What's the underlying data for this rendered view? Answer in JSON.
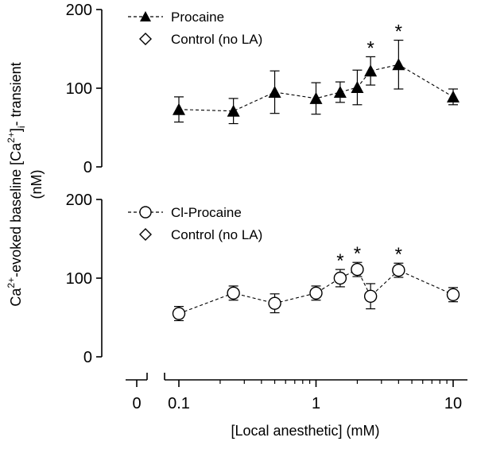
{
  "chart_data": [
    {
      "type": "line",
      "panel": "top",
      "ylabel": "Ca²⁺-evoked baseline [Ca²⁺]i-transient (nM)",
      "xscale": "log",
      "ylim": [
        0,
        200
      ],
      "yticks": [
        "0",
        "100",
        "200"
      ],
      "legend_position": "top-left",
      "legend": [
        {
          "label": "Procaine",
          "marker": "triangle-filled",
          "line": "dashed"
        },
        {
          "label": "Control (no LA)",
          "marker": "diamond-open",
          "line": "none"
        }
      ],
      "series": [
        {
          "name": "Procaine",
          "x": [
            0.1,
            0.25,
            0.5,
            1,
            1.5,
            2,
            2.5,
            4,
            10
          ],
          "y": [
            73,
            71,
            95,
            87,
            95,
            101,
            122,
            130,
            89
          ],
          "error": [
            16,
            16,
            27,
            20,
            13,
            22,
            18,
            31,
            10
          ],
          "significant": [
            false,
            false,
            false,
            false,
            false,
            false,
            true,
            true,
            false
          ]
        }
      ],
      "annotation": "*"
    },
    {
      "type": "line",
      "panel": "bottom",
      "xscale": "log",
      "ylim": [
        0,
        200
      ],
      "yticks": [
        "0",
        "100",
        "200"
      ],
      "legend_position": "top-left",
      "legend": [
        {
          "label": "Cl-Procaine",
          "marker": "circle-open",
          "line": "dashed"
        },
        {
          "label": "Control (no LA)",
          "marker": "diamond-open",
          "line": "none"
        }
      ],
      "series": [
        {
          "name": "Cl-Procaine",
          "x": [
            0.1,
            0.25,
            0.5,
            1,
            1.5,
            2,
            2.5,
            4,
            10
          ],
          "y": [
            55,
            81,
            68,
            81,
            100,
            111,
            77,
            110,
            79
          ],
          "error": [
            9,
            9,
            12,
            9,
            11,
            9,
            16,
            9,
            9
          ],
          "significant": [
            false,
            false,
            false,
            false,
            true,
            true,
            false,
            true,
            false
          ]
        }
      ],
      "annotation": "*"
    }
  ],
  "xaxis": {
    "label": "[Local anesthetic] (mM)",
    "ticks": [
      {
        "value": 0.1,
        "label": "0.1"
      },
      {
        "value": 1,
        "label": "1"
      },
      {
        "value": 10,
        "label": "10"
      }
    ],
    "zero_label": "0"
  },
  "ylabel_parts": {
    "p1": "Ca",
    "s1": "2+",
    "p2": "-evoked baseline [Ca",
    "s2": "2+",
    "p3": "]",
    "sub": "i",
    "p4": "- transient",
    "line2": "(nM)"
  }
}
